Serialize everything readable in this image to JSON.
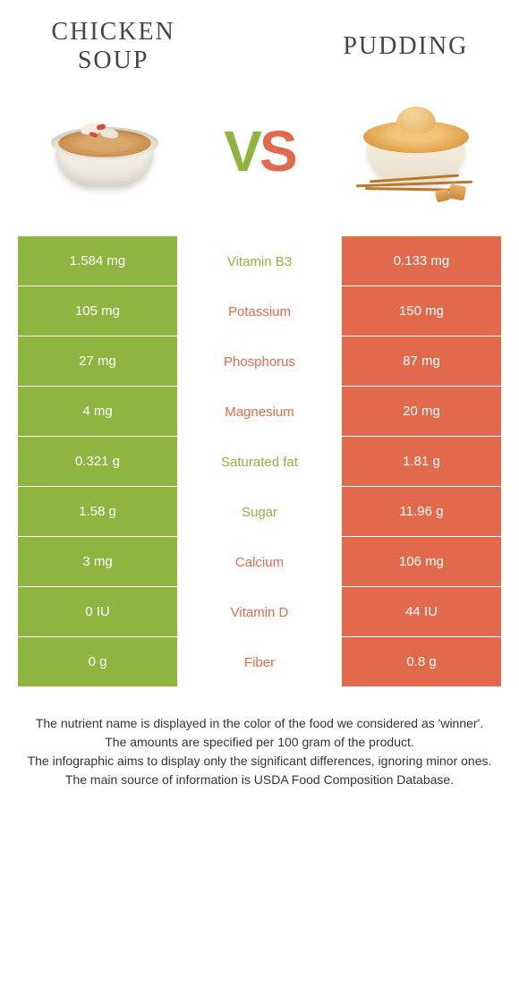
{
  "colors": {
    "left": "#8eb540",
    "right": "#e06a4b",
    "row_text": "#ffffff"
  },
  "foods": {
    "left": {
      "title": "CHICKEN SOUP"
    },
    "right": {
      "title": "PUDDING"
    }
  },
  "vs_label": "VS",
  "table": {
    "rows": [
      {
        "nutrient": "Vitamin B3",
        "left": "1.584 mg",
        "right": "0.133 mg",
        "winner": "left"
      },
      {
        "nutrient": "Potassium",
        "left": "105 mg",
        "right": "150 mg",
        "winner": "right"
      },
      {
        "nutrient": "Phosphorus",
        "left": "27 mg",
        "right": "87 mg",
        "winner": "right"
      },
      {
        "nutrient": "Magnesium",
        "left": "4 mg",
        "right": "20 mg",
        "winner": "right"
      },
      {
        "nutrient": "Saturated fat",
        "left": "0.321 g",
        "right": "1.81 g",
        "winner": "left"
      },
      {
        "nutrient": "Sugar",
        "left": "1.58 g",
        "right": "11.96 g",
        "winner": "left"
      },
      {
        "nutrient": "Calcium",
        "left": "3 mg",
        "right": "106 mg",
        "winner": "right"
      },
      {
        "nutrient": "Vitamin D",
        "left": "0 IU",
        "right": "44 IU",
        "winner": "right"
      },
      {
        "nutrient": "Fiber",
        "left": "0 g",
        "right": "0.8 g",
        "winner": "right"
      }
    ]
  },
  "footer": {
    "line1": "The nutrient name is displayed in the color of the food we considered as 'winner'.",
    "line2": "The amounts are specified per 100 gram of the product.",
    "line3": "The infographic aims to display only the significant differences, ignoring minor ones.",
    "line4": "The main source of information is USDA Food Composition Database."
  }
}
